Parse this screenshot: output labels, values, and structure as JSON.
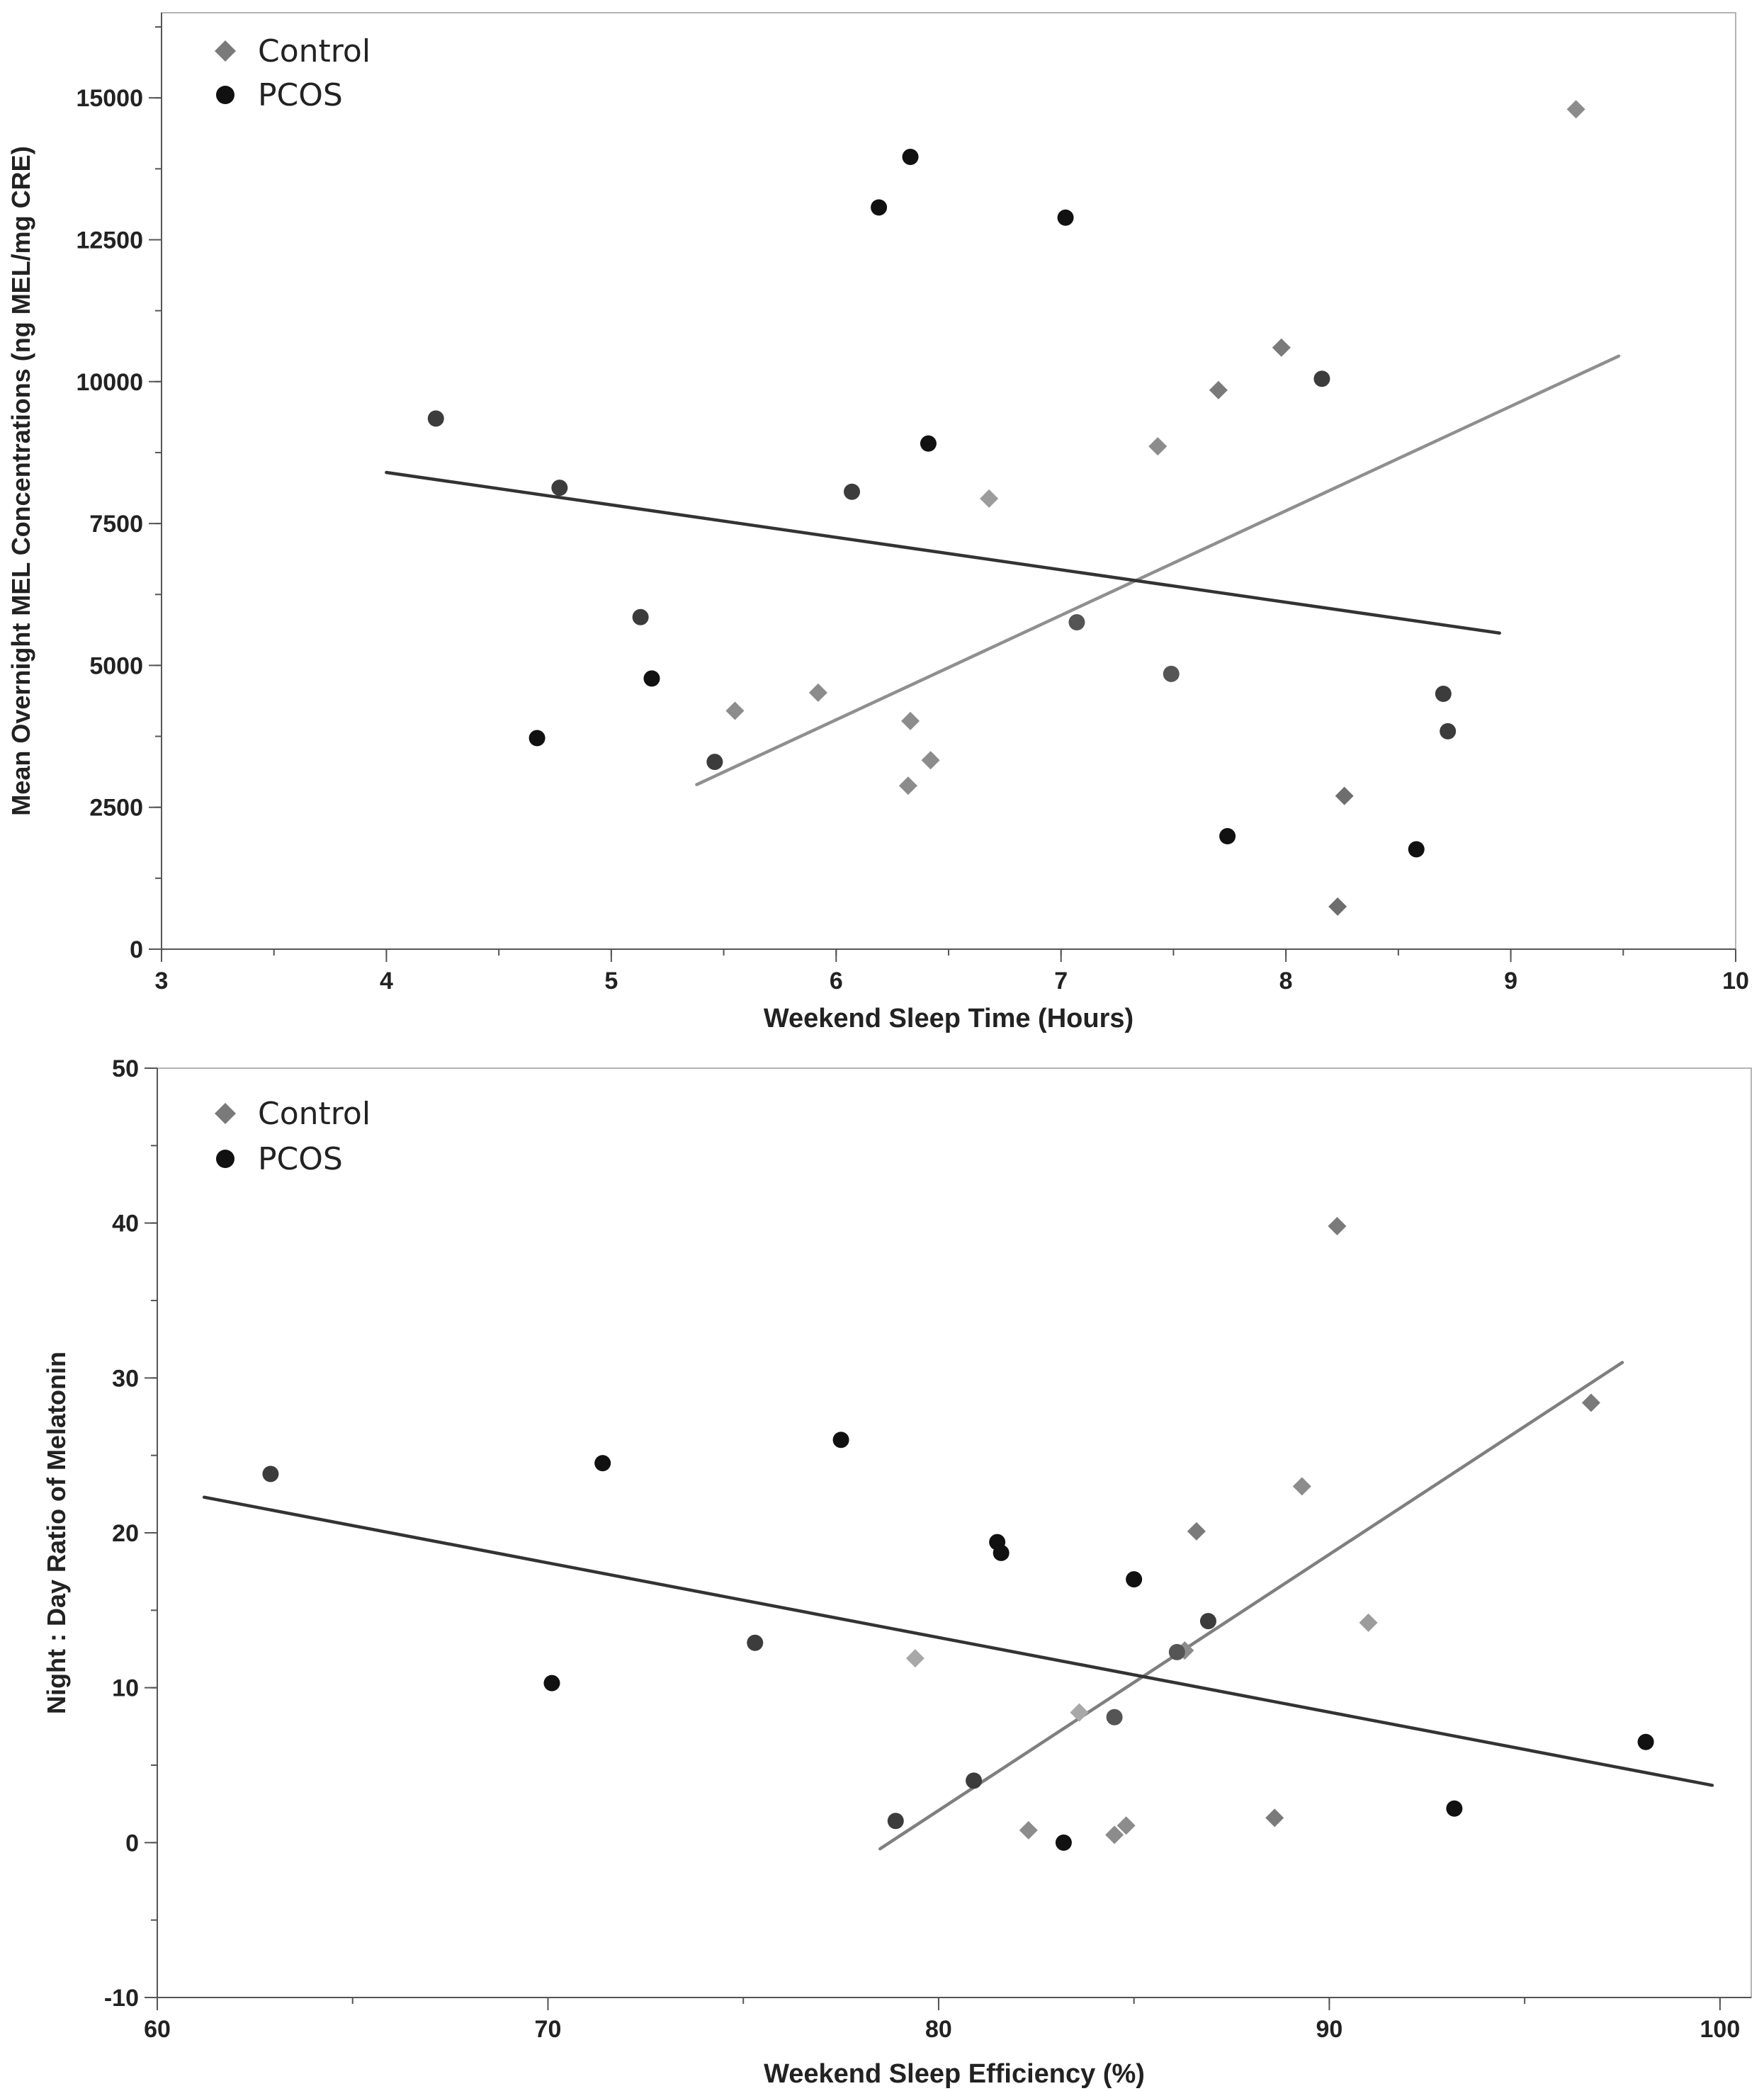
{
  "chart_data": [
    {
      "type": "scatter",
      "title": "",
      "xlabel": "Weekend Sleep Time (Hours)",
      "ylabel": "Mean Overnight MEL Concentrations (ng MEL/mg CRE)",
      "xlim": [
        3,
        10
      ],
      "ylim": [
        0,
        16500
      ],
      "xticks": [
        3,
        4,
        5,
        6,
        7,
        8,
        9,
        10
      ],
      "yticks": [
        0,
        2500,
        5000,
        7500,
        10000,
        12500,
        15000
      ],
      "xtick_labels": [
        "3",
        "4",
        "5",
        "6",
        "7",
        "8",
        "9",
        "10"
      ],
      "ytick_labels": [
        "0",
        "2500",
        "5000",
        "7500",
        "10000",
        "12500",
        "15000"
      ],
      "x_minor_step": 0.5,
      "y_minor_step": 1250,
      "legend_position": "top-left",
      "series": [
        {
          "name": "Control",
          "marker": "diamond",
          "color": "#7a7a7a",
          "points": [
            {
              "x": 5.55,
              "y": 4200,
              "color": "#8c8c8c"
            },
            {
              "x": 5.92,
              "y": 4520,
              "color": "#8c8c8c"
            },
            {
              "x": 6.33,
              "y": 4020,
              "color": "#8c8c8c"
            },
            {
              "x": 6.32,
              "y": 2880,
              "color": "#8c8c8c"
            },
            {
              "x": 6.42,
              "y": 3330,
              "color": "#8c8c8c"
            },
            {
              "x": 6.68,
              "y": 7940,
              "color": "#9c9c9c"
            },
            {
              "x": 7.43,
              "y": 8860,
              "color": "#8c8c8c"
            },
            {
              "x": 7.7,
              "y": 9850,
              "color": "#7a7a7a"
            },
            {
              "x": 7.98,
              "y": 10600,
              "color": "#7a7a7a"
            },
            {
              "x": 8.26,
              "y": 2700,
              "color": "#6e6e6e"
            },
            {
              "x": 8.23,
              "y": 750,
              "color": "#6e6e6e"
            },
            {
              "x": 9.29,
              "y": 14800,
              "color": "#8c8c8c"
            }
          ],
          "fit_line": {
            "x1": 5.38,
            "y1": 2900,
            "x2": 9.48,
            "y2": 10450,
            "color": "#8f8f8f"
          }
        },
        {
          "name": "PCOS",
          "marker": "circle",
          "color": "#111111",
          "points": [
            {
              "x": 4.22,
              "y": 9350,
              "color": "#3c3c3c"
            },
            {
              "x": 4.77,
              "y": 8130,
              "color": "#3c3c3c"
            },
            {
              "x": 4.67,
              "y": 3720,
              "color": "#111111"
            },
            {
              "x": 5.13,
              "y": 5850,
              "color": "#3c3c3c"
            },
            {
              "x": 5.18,
              "y": 4770,
              "color": "#111111"
            },
            {
              "x": 5.46,
              "y": 3300,
              "color": "#3c3c3c"
            },
            {
              "x": 6.07,
              "y": 8060,
              "color": "#3c3c3c"
            },
            {
              "x": 6.19,
              "y": 13070,
              "color": "#111111"
            },
            {
              "x": 6.33,
              "y": 13960,
              "color": "#111111"
            },
            {
              "x": 6.41,
              "y": 8910,
              "color": "#111111"
            },
            {
              "x": 7.02,
              "y": 12890,
              "color": "#111111"
            },
            {
              "x": 7.07,
              "y": 5760,
              "color": "#555555"
            },
            {
              "x": 7.49,
              "y": 4850,
              "color": "#555555"
            },
            {
              "x": 7.74,
              "y": 1990,
              "color": "#111111"
            },
            {
              "x": 8.16,
              "y": 10050,
              "color": "#3c3c3c"
            },
            {
              "x": 8.58,
              "y": 1760,
              "color": "#111111"
            },
            {
              "x": 8.7,
              "y": 4500,
              "color": "#3c3c3c"
            },
            {
              "x": 8.72,
              "y": 3840,
              "color": "#3c3c3c"
            }
          ],
          "fit_line": {
            "x1": 4.0,
            "y1": 8400,
            "x2": 8.95,
            "y2": 5570,
            "color": "#333333"
          }
        }
      ]
    },
    {
      "type": "scatter",
      "title": "",
      "xlabel": "Weekend Sleep Efficiency (%)",
      "ylabel": "Night : Day Ratio of Melatonin",
      "xlim": [
        60,
        100.8
      ],
      "ylim": [
        -10,
        50
      ],
      "xticks": [
        60,
        70,
        80,
        90,
        100
      ],
      "yticks": [
        -10,
        0,
        10,
        20,
        30,
        40,
        50
      ],
      "xtick_labels": [
        "60",
        "70",
        "80",
        "90",
        "100"
      ],
      "ytick_labels": [
        "-10",
        "0",
        "10",
        "20",
        "30",
        "40",
        "50"
      ],
      "x_minor_step": 5,
      "y_minor_step": 5,
      "legend_position": "top-left",
      "series": [
        {
          "name": "Control",
          "marker": "diamond",
          "color": "#7a7a7a",
          "points": [
            {
              "x": 79.4,
              "y": 11.9,
              "color": "#a8a8a8"
            },
            {
              "x": 83.6,
              "y": 8.4,
              "color": "#a8a8a8"
            },
            {
              "x": 82.3,
              "y": 0.8,
              "color": "#8c8c8c"
            },
            {
              "x": 84.5,
              "y": 0.5,
              "color": "#8c8c8c"
            },
            {
              "x": 84.8,
              "y": 1.1,
              "color": "#8c8c8c"
            },
            {
              "x": 86.3,
              "y": 12.4,
              "color": "#8c8c8c"
            },
            {
              "x": 86.6,
              "y": 20.1,
              "color": "#7a7a7a"
            },
            {
              "x": 88.6,
              "y": 1.6,
              "color": "#7a7a7a"
            },
            {
              "x": 89.3,
              "y": 23.0,
              "color": "#8c8c8c"
            },
            {
              "x": 90.2,
              "y": 39.8,
              "color": "#7a7a7a"
            },
            {
              "x": 91.0,
              "y": 14.2,
              "color": "#9c9c9c"
            },
            {
              "x": 96.7,
              "y": 28.4,
              "color": "#7a7a7a"
            }
          ],
          "fit_line": {
            "x1": 78.5,
            "y1": -0.4,
            "x2": 97.5,
            "y2": 31.0,
            "color": "#7f7f7f"
          }
        },
        {
          "name": "PCOS",
          "marker": "circle",
          "color": "#111111",
          "points": [
            {
              "x": 62.9,
              "y": 23.8,
              "color": "#3c3c3c"
            },
            {
              "x": 70.1,
              "y": 10.3,
              "color": "#111111"
            },
            {
              "x": 71.4,
              "y": 24.5,
              "color": "#111111"
            },
            {
              "x": 75.3,
              "y": 12.9,
              "color": "#3c3c3c"
            },
            {
              "x": 77.5,
              "y": 26.0,
              "color": "#111111"
            },
            {
              "x": 78.9,
              "y": 1.4,
              "color": "#3c3c3c"
            },
            {
              "x": 80.9,
              "y": 4.0,
              "color": "#3c3c3c"
            },
            {
              "x": 81.5,
              "y": 19.4,
              "color": "#111111"
            },
            {
              "x": 81.6,
              "y": 18.7,
              "color": "#111111"
            },
            {
              "x": 83.2,
              "y": 0.0,
              "color": "#111111"
            },
            {
              "x": 84.5,
              "y": 8.1,
              "color": "#555555"
            },
            {
              "x": 85.0,
              "y": 17.0,
              "color": "#111111"
            },
            {
              "x": 86.1,
              "y": 12.3,
              "color": "#555555"
            },
            {
              "x": 86.9,
              "y": 14.3,
              "color": "#3c3c3c"
            },
            {
              "x": 93.2,
              "y": 2.2,
              "color": "#111111"
            },
            {
              "x": 98.1,
              "y": 6.5,
              "color": "#111111"
            }
          ],
          "fit_line": {
            "x1": 61.2,
            "y1": 22.3,
            "x2": 99.8,
            "y2": 3.7,
            "color": "#333333"
          }
        }
      ]
    }
  ]
}
